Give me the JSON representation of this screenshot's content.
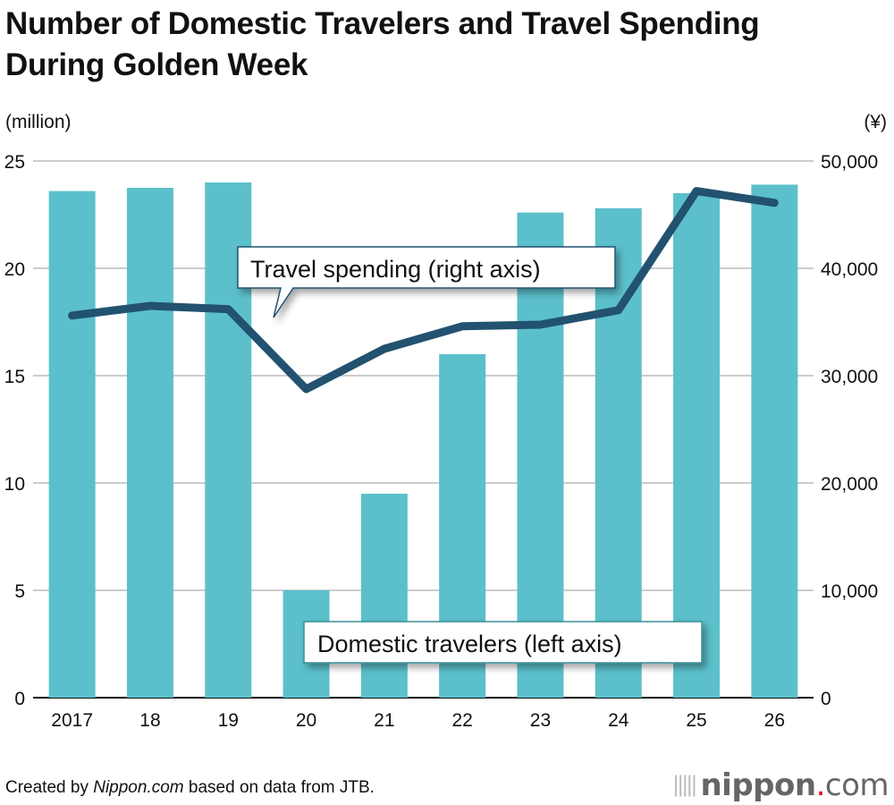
{
  "title_line1": "Number of Domestic Travelers and Travel Spending",
  "title_line2": "During Golden Week",
  "footer": {
    "prefix": "Created by ",
    "site": "Nippon.com",
    "suffix": " based on data from JTB."
  },
  "logo": {
    "name": "nippon",
    "dot": ".",
    "tld": "com"
  },
  "chart_data": {
    "type": "bar+line",
    "categories": [
      "2017",
      "18",
      "19",
      "20",
      "21",
      "22",
      "23",
      "24",
      "25",
      "26"
    ],
    "left_axis": {
      "unit": "(million)",
      "range": [
        0,
        25
      ],
      "ticks": [
        0,
        5,
        10,
        15,
        20,
        25
      ],
      "tick_labels": [
        "0",
        "5",
        "10",
        "15",
        "20",
        "25"
      ]
    },
    "right_axis": {
      "unit": "(¥)",
      "range": [
        0,
        50000
      ],
      "ticks": [
        0,
        10000,
        20000,
        30000,
        40000,
        50000
      ],
      "tick_labels": [
        "0",
        "10,000",
        "20,000",
        "30,000",
        "40,000",
        "50,000"
      ]
    },
    "grid": true,
    "series": [
      {
        "name": "Domestic travelers (left axis)",
        "type": "bar",
        "axis": "left",
        "color": "#5bc0cb",
        "values": [
          23.6,
          23.75,
          24.0,
          5.0,
          9.5,
          16.0,
          22.6,
          22.8,
          23.5,
          23.9
        ]
      },
      {
        "name": "Travel spending (right axis)",
        "type": "line",
        "axis": "right",
        "color": "#22526f",
        "values": [
          35600,
          36500,
          36200,
          28750,
          32500,
          34600,
          34750,
          36100,
          47200,
          46100
        ]
      }
    ]
  }
}
